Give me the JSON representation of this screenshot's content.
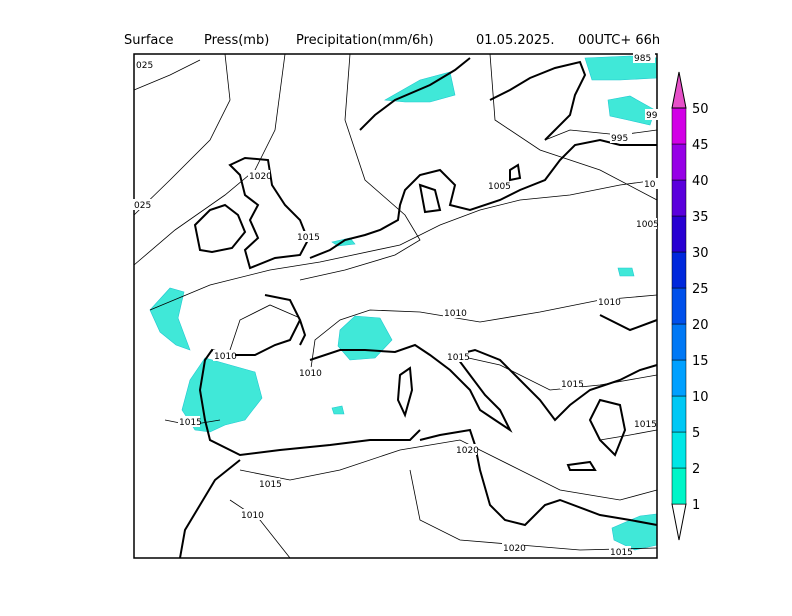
{
  "header": {
    "field": "Surface",
    "pressure": "Press(mb)",
    "precipitation": "Precipitation(mm/6h)",
    "date": "01.05.2025.",
    "run": "00UTC+ 66h"
  },
  "isobar_labels": [
    "025",
    "1020",
    "025",
    "1015",
    "1005",
    "1005",
    "995",
    "985",
    "99",
    "10",
    "1010",
    "1010",
    "1010",
    "1010",
    "1015",
    "1015",
    "1015",
    "1015",
    "1020",
    "1015",
    "1010",
    "1020",
    "1015"
  ],
  "colorbar": {
    "levels": [
      1,
      2,
      5,
      10,
      15,
      20,
      25,
      30,
      35,
      40,
      45,
      50
    ],
    "colors": [
      "#ffffff",
      "#00f5c8",
      "#00e6e6",
      "#00c8f5",
      "#00a0ff",
      "#0078f5",
      "#0050eb",
      "#0028dc",
      "#2800d2",
      "#5a00dc",
      "#9600e6",
      "#d200e6",
      "#e650c8"
    ]
  }
}
